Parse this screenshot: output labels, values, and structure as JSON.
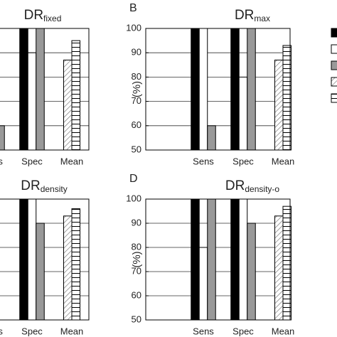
{
  "chart_data": [
    {
      "type": "bar",
      "title": "DR",
      "title_sub": "fixed",
      "categories": [
        "Sens",
        "Spec",
        "Mean"
      ],
      "series": [
        {
          "color": "#000000",
          "values": [
            null,
            100,
            null
          ]
        },
        {
          "color": "#ffffff",
          "values": [
            null,
            90,
            null
          ]
        },
        {
          "color": "#999999",
          "values": [
            60,
            100,
            null
          ]
        },
        {
          "color": "#ffffff",
          "pattern": "diagonal",
          "values": [
            null,
            null,
            87
          ]
        },
        {
          "color": "#ffffff",
          "pattern": "stripes",
          "values": [
            null,
            null,
            95
          ]
        }
      ],
      "ylim": [
        50,
        100
      ],
      "yticks": [
        50,
        60,
        70,
        80,
        90,
        100
      ],
      "grid": true
    },
    {
      "type": "bar",
      "panel_label": "B",
      "title": "DR",
      "title_sub": "max",
      "ylabel": "(%)",
      "categories": [
        "Sens",
        "Spec",
        "Mean"
      ],
      "series": [
        {
          "color": "#000000",
          "values": [
            100,
            100,
            null
          ]
        },
        {
          "color": "#ffffff",
          "values": [
            100,
            80,
            null
          ]
        },
        {
          "color": "#999999",
          "values": [
            60,
            100,
            null
          ]
        },
        {
          "color": "#ffffff",
          "pattern": "diagonal",
          "values": [
            null,
            null,
            87
          ]
        },
        {
          "color": "#ffffff",
          "pattern": "stripes",
          "values": [
            null,
            null,
            93
          ]
        }
      ],
      "ylim": [
        50,
        100
      ],
      "yticks": [
        50,
        60,
        70,
        80,
        90,
        100
      ],
      "grid": true
    },
    {
      "type": "bar",
      "title": "DR",
      "title_sub": "density",
      "categories": [
        "Sens",
        "Spec",
        "Mean"
      ],
      "series": [
        {
          "color": "#000000",
          "values": [
            null,
            100,
            null
          ]
        },
        {
          "color": "#ffffff",
          "values": [
            null,
            100,
            null
          ]
        },
        {
          "color": "#999999",
          "values": [
            null,
            90,
            null
          ]
        },
        {
          "color": "#ffffff",
          "pattern": "diagonal",
          "values": [
            null,
            null,
            93
          ]
        },
        {
          "color": "#ffffff",
          "pattern": "stripes",
          "values": [
            null,
            null,
            96
          ]
        }
      ],
      "ylim": [
        50,
        100
      ],
      "yticks": [
        50,
        60,
        70,
        80,
        90,
        100
      ],
      "grid": true
    },
    {
      "type": "bar",
      "panel_label": "D",
      "title": "DR",
      "title_sub": "density-o",
      "ylabel": "(%)",
      "categories": [
        "Sens",
        "Spec",
        "Mean"
      ],
      "series": [
        {
          "color": "#000000",
          "values": [
            100,
            100,
            null
          ]
        },
        {
          "color": "#ffffff",
          "values": [
            80,
            100,
            null
          ]
        },
        {
          "color": "#999999",
          "values": [
            100,
            90,
            null
          ]
        },
        {
          "color": "#ffffff",
          "pattern": "diagonal",
          "values": [
            null,
            null,
            93
          ]
        },
        {
          "color": "#ffffff",
          "pattern": "stripes",
          "values": [
            null,
            null,
            97
          ]
        }
      ],
      "ylim": [
        50,
        100
      ],
      "yticks": [
        50,
        60,
        70,
        80,
        90,
        100
      ],
      "grid": true
    }
  ]
}
